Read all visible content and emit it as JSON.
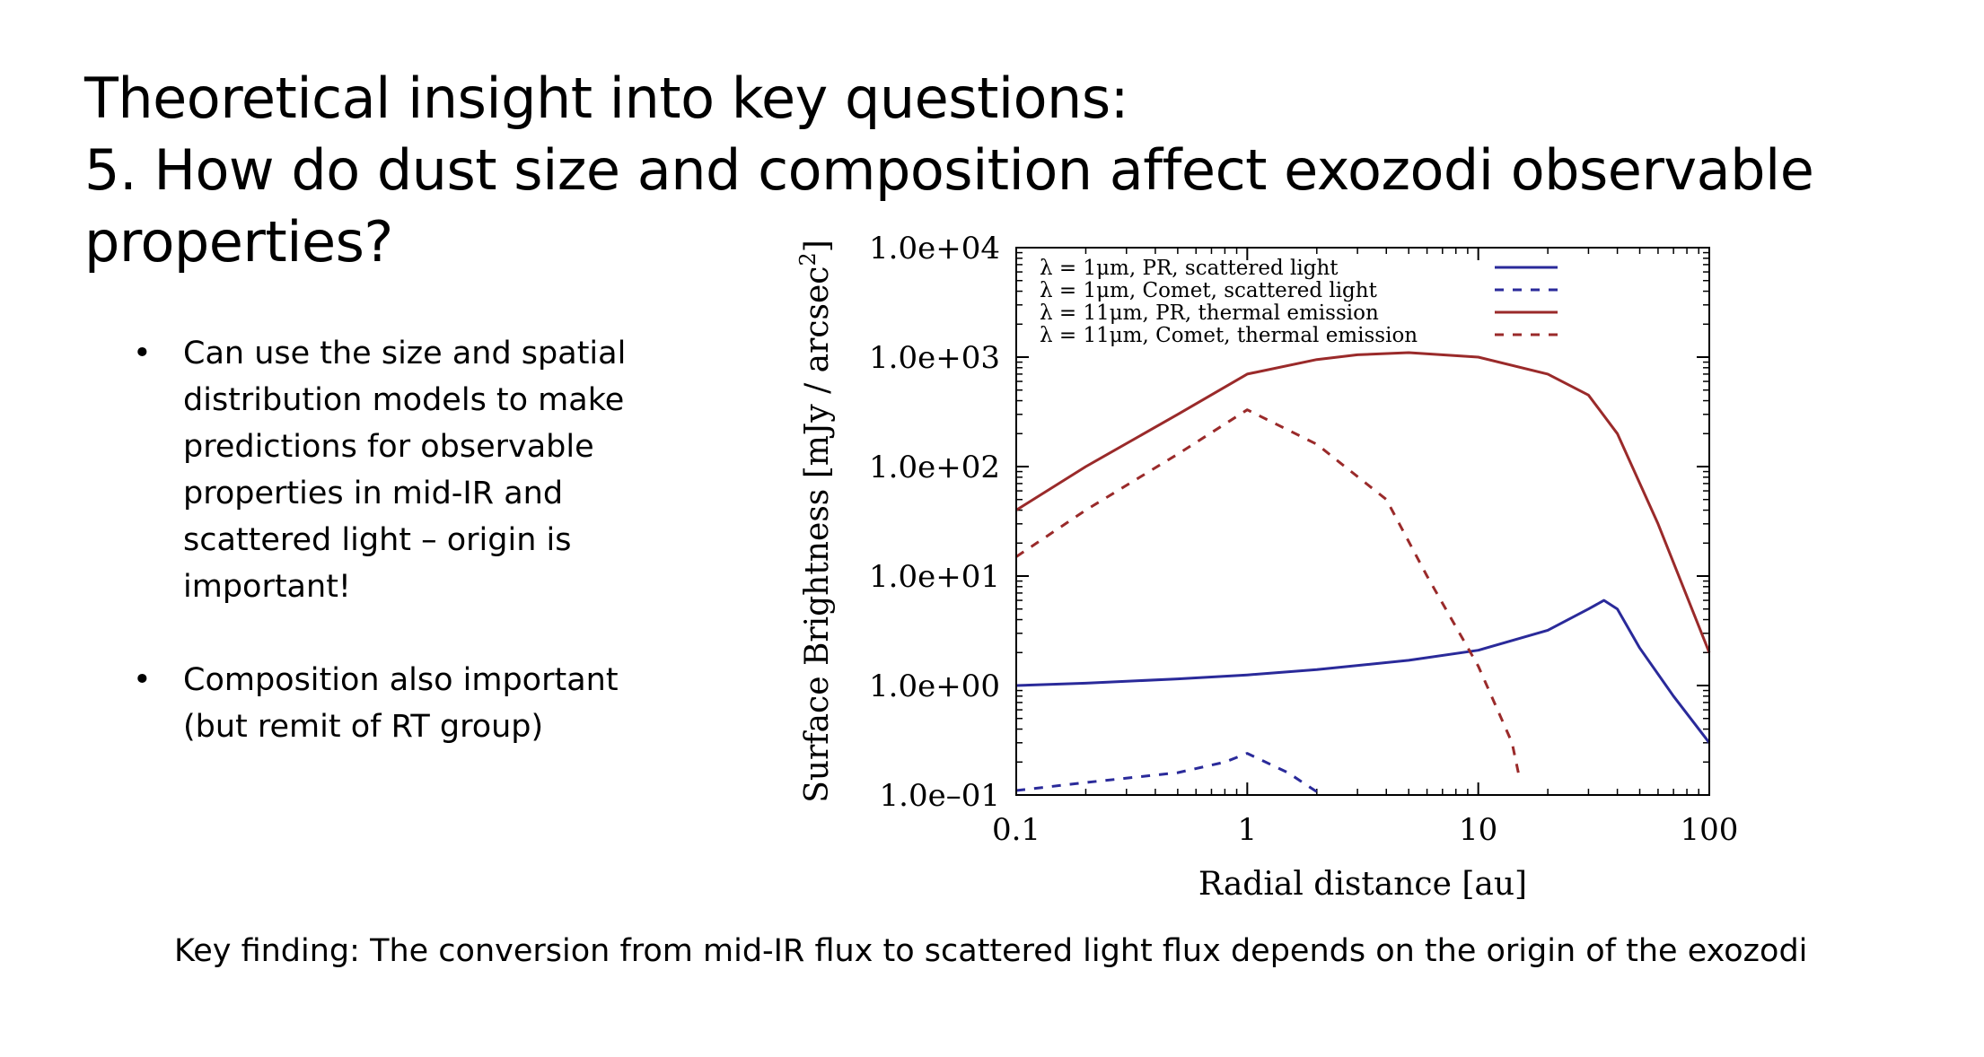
{
  "slide": {
    "title_line1": "Theoretical insight into key questions:",
    "title_line2": "5. How do dust size and composition affect exozodi observable properties?",
    "bullets": [
      {
        "dot": "•",
        "lines": [
          "Can use the size and spatial",
          "distribution models to make",
          "predictions for observable",
          "properties in mid-IR and",
          "scattered light – origin is",
          "important!"
        ]
      },
      {
        "dot": "•",
        "lines": [
          "Composition also important",
          "(but remit of RT group)"
        ]
      }
    ],
    "key_finding": "Key finding: The conversion from mid-IR flux to scattered light flux depends on the origin of the exozodi"
  },
  "chart_data": {
    "type": "line",
    "xlabel": "Radial distance [au]",
    "ylabel": "Surface Brightness [mJy / arcsec",
    "ylabel_sup": "2",
    "ylabel_close": "]",
    "xscale": "log",
    "yscale": "log",
    "xlim": [
      0.1,
      100
    ],
    "ylim": [
      0.1,
      10000
    ],
    "x_ticks": [
      {
        "value": 0.1,
        "label": "0.1"
      },
      {
        "value": 1,
        "label": "1"
      },
      {
        "value": 10,
        "label": "10"
      },
      {
        "value": 100,
        "label": "100"
      }
    ],
    "y_ticks": [
      {
        "value": 0.1,
        "label": "1.0e–01"
      },
      {
        "value": 1,
        "label": "1.0e+00"
      },
      {
        "value": 10,
        "label": "1.0e+01"
      },
      {
        "value": 100,
        "label": "1.0e+02"
      },
      {
        "value": 1000,
        "label": "1.0e+03"
      },
      {
        "value": 10000,
        "label": "1.0e+04"
      }
    ],
    "legend_position": "top",
    "series": [
      {
        "name": "λ = 1μm, PR, scattered light",
        "color": "#2a2a9a",
        "dash": "solid",
        "x": [
          0.1,
          0.2,
          0.5,
          1,
          2,
          5,
          10,
          20,
          30,
          35,
          40,
          50,
          70,
          100
        ],
        "y": [
          1.0,
          1.05,
          1.15,
          1.25,
          1.4,
          1.7,
          2.1,
          3.2,
          5.0,
          6.0,
          5.0,
          2.2,
          0.8,
          0.3
        ]
      },
      {
        "name": "λ = 1μm, Comet, scattered light",
        "color": "#2a2a9a",
        "dash": "dashed",
        "x": [
          0.1,
          0.2,
          0.5,
          0.8,
          1.0,
          1.5,
          2.1
        ],
        "y": [
          0.11,
          0.13,
          0.16,
          0.2,
          0.24,
          0.16,
          0.1
        ]
      },
      {
        "name": "λ = 11μm, PR, thermal emission",
        "color": "#9a2a2a",
        "dash": "solid",
        "x": [
          0.1,
          0.2,
          0.5,
          1,
          2,
          3,
          5,
          10,
          20,
          30,
          40,
          60,
          100
        ],
        "y": [
          40,
          100,
          300,
          700,
          950,
          1050,
          1100,
          1000,
          700,
          450,
          200,
          30,
          2
        ]
      },
      {
        "name": "λ = 11μm, Comet, thermal emission",
        "color": "#9a2a2a",
        "dash": "dashed",
        "x": [
          0.1,
          0.2,
          0.5,
          1,
          2,
          4,
          6,
          10,
          14,
          15
        ],
        "y": [
          15,
          40,
          130,
          330,
          160,
          50,
          10,
          1.5,
          0.3,
          0.15
        ]
      }
    ]
  }
}
